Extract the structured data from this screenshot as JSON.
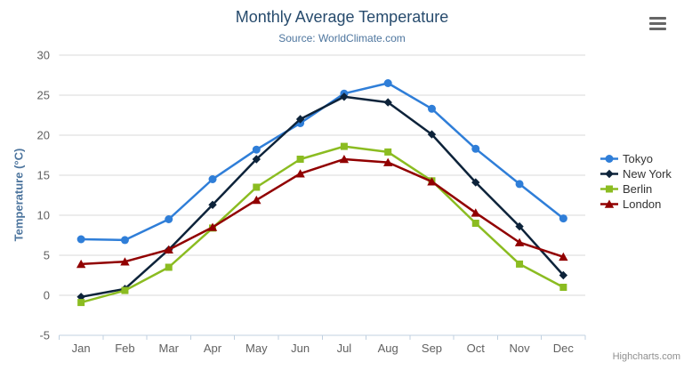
{
  "credits": {
    "text": "Highcharts.com"
  },
  "menu": {
    "icon": "hamburger-menu-icon",
    "tooltip_label": ""
  },
  "palette": {
    "title_color": "#274b6d",
    "subtitle_color": "#4d759e",
    "axis_title_color": "#4d759e",
    "tick_label_color": "#606060",
    "legend_text_color": "#333333",
    "grid_color": "#d8d8d8",
    "axis_line_color": "#c0d0e0",
    "credit_color": "#8f8f8f",
    "menu_icon_color": "#666666"
  },
  "chart_data": {
    "type": "line",
    "title": "Monthly Average Temperature",
    "subtitle": "Source: WorldClimate.com",
    "xlabel": "",
    "ylabel": "Temperature (°C)",
    "ylim": [
      -5,
      30
    ],
    "yticks": [
      -5,
      0,
      5,
      10,
      15,
      20,
      25,
      30
    ],
    "grid": "horizontal",
    "legend_position": "right",
    "categories": [
      "Jan",
      "Feb",
      "Mar",
      "Apr",
      "May",
      "Jun",
      "Jul",
      "Aug",
      "Sep",
      "Oct",
      "Nov",
      "Dec"
    ],
    "series": [
      {
        "name": "Tokyo",
        "color": "#2f7ed8",
        "marker": "circle",
        "values": [
          7.0,
          6.9,
          9.5,
          14.5,
          18.2,
          21.5,
          25.2,
          26.5,
          23.3,
          18.3,
          13.9,
          9.6
        ]
      },
      {
        "name": "New York",
        "color": "#0d233a",
        "marker": "diamond",
        "values": [
          -0.2,
          0.8,
          5.7,
          11.3,
          17.0,
          22.0,
          24.8,
          24.1,
          20.1,
          14.1,
          8.6,
          2.5
        ]
      },
      {
        "name": "Berlin",
        "color": "#8bbc21",
        "marker": "square",
        "values": [
          -0.9,
          0.6,
          3.5,
          8.4,
          13.5,
          17.0,
          18.6,
          17.9,
          14.3,
          9.0,
          3.9,
          1.0
        ]
      },
      {
        "name": "London",
        "color": "#910000",
        "marker": "triangle",
        "values": [
          3.9,
          4.2,
          5.7,
          8.5,
          11.9,
          15.2,
          17.0,
          16.6,
          14.2,
          10.3,
          6.6,
          4.8
        ]
      }
    ]
  }
}
